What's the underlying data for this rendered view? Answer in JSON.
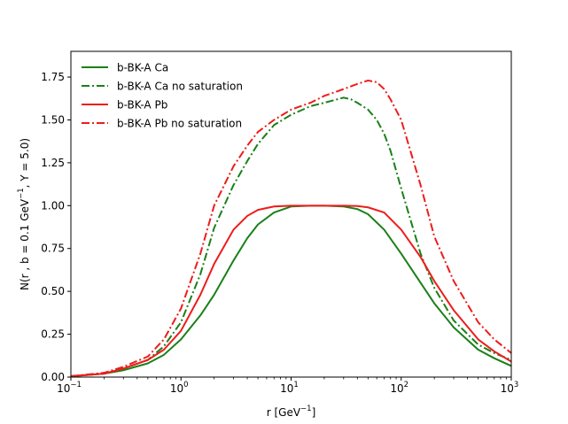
{
  "chart_data": {
    "type": "line",
    "xscale": "log",
    "xlim": [
      0.1,
      1000
    ],
    "ylim": [
      0.0,
      1.9
    ],
    "xlabel": "r [GeV",
    "xlabel_sup": "−1",
    "xlabel_end": "]",
    "ylabel": "N(r , b = 0.1 GeV",
    "ylabel_sup": "−1",
    "ylabel_end": ", Y = 5.0)",
    "yticks": [
      "0.00",
      "0.25",
      "0.50",
      "0.75",
      "1.00",
      "1.25",
      "1.50",
      "1.75"
    ],
    "ytick_values": [
      0.0,
      0.25,
      0.5,
      0.75,
      1.0,
      1.25,
      1.5,
      1.75
    ],
    "xticks": [
      {
        "value": 0.1,
        "base": "10",
        "exp": "−1"
      },
      {
        "value": 1,
        "base": "10",
        "exp": "0"
      },
      {
        "value": 10,
        "base": "10",
        "exp": "1"
      },
      {
        "value": 100,
        "base": "10",
        "exp": "2"
      },
      {
        "value": 1000,
        "base": "10",
        "exp": "3"
      }
    ],
    "legend_position": "top-left",
    "series": [
      {
        "name": "b-BK-A Ca",
        "color": "#1a8019",
        "style": "solid",
        "x": [
          0.1,
          0.2,
          0.3,
          0.5,
          0.7,
          1.0,
          1.5,
          2,
          3,
          4,
          5,
          7,
          10,
          15,
          20,
          30,
          40,
          50,
          70,
          100,
          150,
          200,
          300,
          500,
          700,
          1000
        ],
        "y": [
          0.005,
          0.02,
          0.04,
          0.08,
          0.13,
          0.22,
          0.36,
          0.48,
          0.68,
          0.81,
          0.89,
          0.96,
          0.995,
          1.0,
          1.0,
          0.995,
          0.98,
          0.95,
          0.86,
          0.72,
          0.55,
          0.43,
          0.29,
          0.16,
          0.11,
          0.065
        ]
      },
      {
        "name": "b-BK-A Ca no saturation",
        "color": "#1a8019",
        "style": "dashdot",
        "x": [
          0.1,
          0.2,
          0.3,
          0.5,
          0.7,
          1.0,
          1.5,
          2,
          3,
          4,
          5,
          7,
          10,
          15,
          20,
          30,
          35,
          40,
          50,
          60,
          70,
          80,
          100,
          150,
          200,
          300,
          500,
          700,
          1000
        ],
        "y": [
          0.005,
          0.02,
          0.05,
          0.1,
          0.18,
          0.32,
          0.6,
          0.87,
          1.12,
          1.26,
          1.36,
          1.47,
          1.53,
          1.58,
          1.6,
          1.63,
          1.62,
          1.6,
          1.56,
          1.5,
          1.42,
          1.32,
          1.1,
          0.72,
          0.52,
          0.33,
          0.19,
          0.14,
          0.1
        ]
      },
      {
        "name": "b-BK-A Pb",
        "color": "#ee1c1c",
        "style": "solid",
        "x": [
          0.1,
          0.2,
          0.3,
          0.5,
          0.7,
          1.0,
          1.5,
          2,
          3,
          4,
          5,
          7,
          10,
          15,
          20,
          30,
          40,
          50,
          70,
          100,
          150,
          200,
          300,
          500,
          700,
          1000
        ],
        "y": [
          0.005,
          0.02,
          0.05,
          0.1,
          0.16,
          0.27,
          0.48,
          0.66,
          0.86,
          0.94,
          0.975,
          0.995,
          1.0,
          1.0,
          1.0,
          1.0,
          0.998,
          0.99,
          0.96,
          0.86,
          0.7,
          0.56,
          0.39,
          0.22,
          0.15,
          0.09
        ]
      },
      {
        "name": "b-BK-A Pb no saturation",
        "color": "#ee1c1c",
        "style": "dashdot",
        "x": [
          0.1,
          0.2,
          0.3,
          0.5,
          0.7,
          1.0,
          1.5,
          2,
          3,
          4,
          5,
          7,
          10,
          15,
          20,
          30,
          40,
          50,
          60,
          70,
          80,
          100,
          150,
          200,
          300,
          500,
          700,
          1000
        ],
        "y": [
          0.005,
          0.025,
          0.06,
          0.12,
          0.22,
          0.4,
          0.72,
          1.0,
          1.23,
          1.35,
          1.43,
          1.5,
          1.56,
          1.6,
          1.64,
          1.68,
          1.71,
          1.73,
          1.72,
          1.68,
          1.62,
          1.5,
          1.12,
          0.82,
          0.56,
          0.32,
          0.22,
          0.14
        ]
      }
    ]
  }
}
